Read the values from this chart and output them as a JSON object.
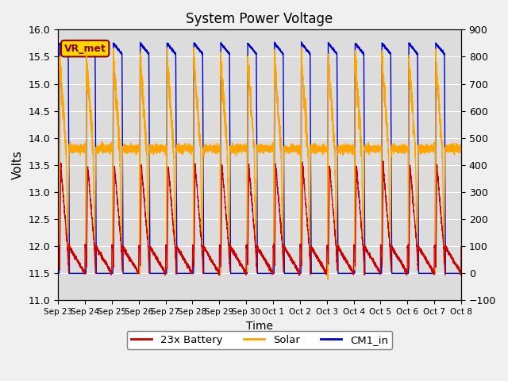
{
  "title": "System Power Voltage",
  "xlabel": "Time",
  "ylabel_left": "Volts",
  "ylim_left": [
    11.0,
    16.0
  ],
  "ylim_right": [
    -100,
    900
  ],
  "yticks_left": [
    11.0,
    11.5,
    12.0,
    12.5,
    13.0,
    13.5,
    14.0,
    14.5,
    15.0,
    15.5,
    16.0
  ],
  "yticks_right": [
    -100,
    0,
    100,
    200,
    300,
    400,
    500,
    600,
    700,
    800,
    900
  ],
  "x_tick_labels": [
    "Sep 23",
    "Sep 24",
    "Sep 25",
    "Sep 26",
    "Sep 27",
    "Sep 28",
    "Sep 29",
    "Sep 30",
    "Oct 1",
    "Oct 2",
    "Oct 3",
    "Oct 4",
    "Oct 5",
    "Oct 6",
    "Oct 7",
    "Oct 8"
  ],
  "annotation_text": "VR_met",
  "annotation_color": "#8B0000",
  "annotation_box_color": "#FFD700",
  "battery_color": "#CC0000",
  "solar_color": "#FFA500",
  "cm1_color": "#0000CC",
  "background_color": "#DCDCDC",
  "fig_background": "#F0F0F0",
  "legend_labels": [
    "23x Battery",
    "Solar",
    "CM1_in"
  ]
}
